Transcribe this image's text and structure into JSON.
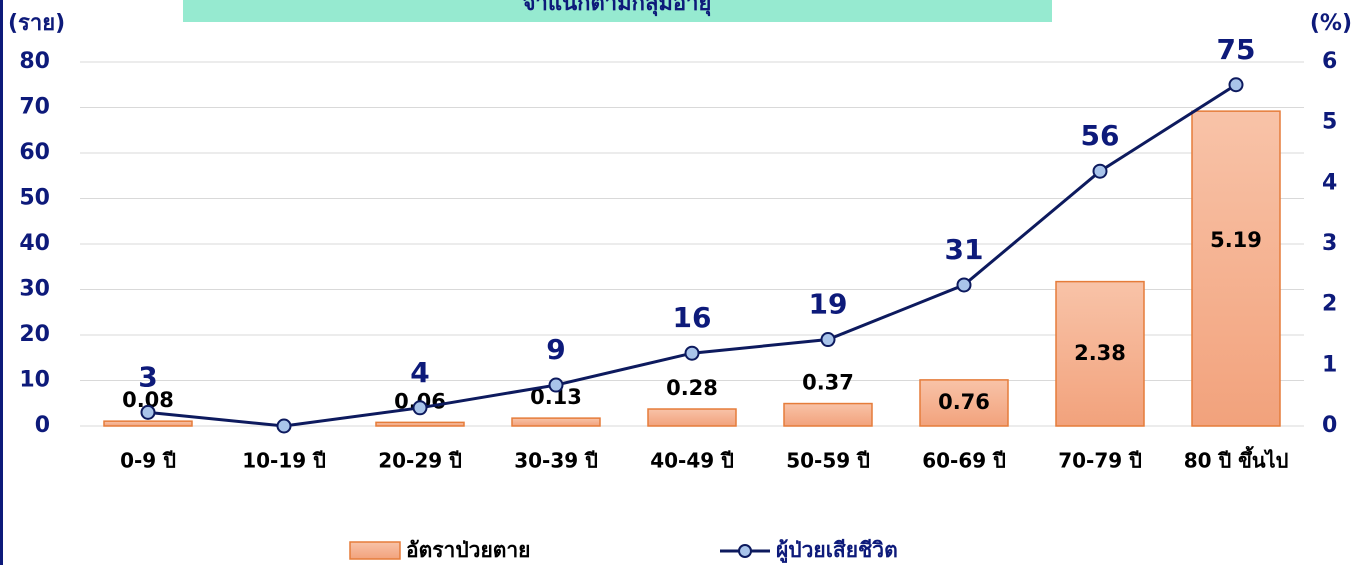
{
  "chart_data": {
    "type": "bar_line",
    "title": "จำแนกตามกลุ่มอายุ",
    "y_label": "(ราย)",
    "y2_label": "(%)",
    "categories": [
      "0-9 ปี",
      "10-19 ปี",
      "20-29 ปี",
      "30-39 ปี",
      "40-49 ปี",
      "50-59 ปี",
      "60-69 ปี",
      "70-79 ปี",
      "80 ปี ขึ้นไป"
    ],
    "series": [
      {
        "name": "อัตราป่วยตาย",
        "type": "bar",
        "axis": "y2",
        "color": "#f4b08f",
        "values": [
          0.08,
          null,
          0.06,
          0.13,
          0.28,
          0.37,
          0.76,
          2.38,
          5.19
        ]
      },
      {
        "name": "ผู้ป่วยเสียชีวิต",
        "type": "line",
        "axis": "y",
        "color": "#0d1a5e",
        "values": [
          3,
          0,
          4,
          9,
          16,
          19,
          31,
          56,
          75
        ],
        "value_labels": [
          "3",
          null,
          "4",
          "9",
          "16",
          "19",
          "31",
          "56",
          "75"
        ]
      }
    ],
    "ylim": [
      0,
      80
    ],
    "yticks": [
      0,
      10,
      20,
      30,
      40,
      50,
      60,
      70,
      80
    ],
    "y2lim": [
      0,
      6
    ],
    "y2ticks": [
      0,
      1,
      2,
      3,
      4,
      5,
      6
    ],
    "grid": true
  }
}
